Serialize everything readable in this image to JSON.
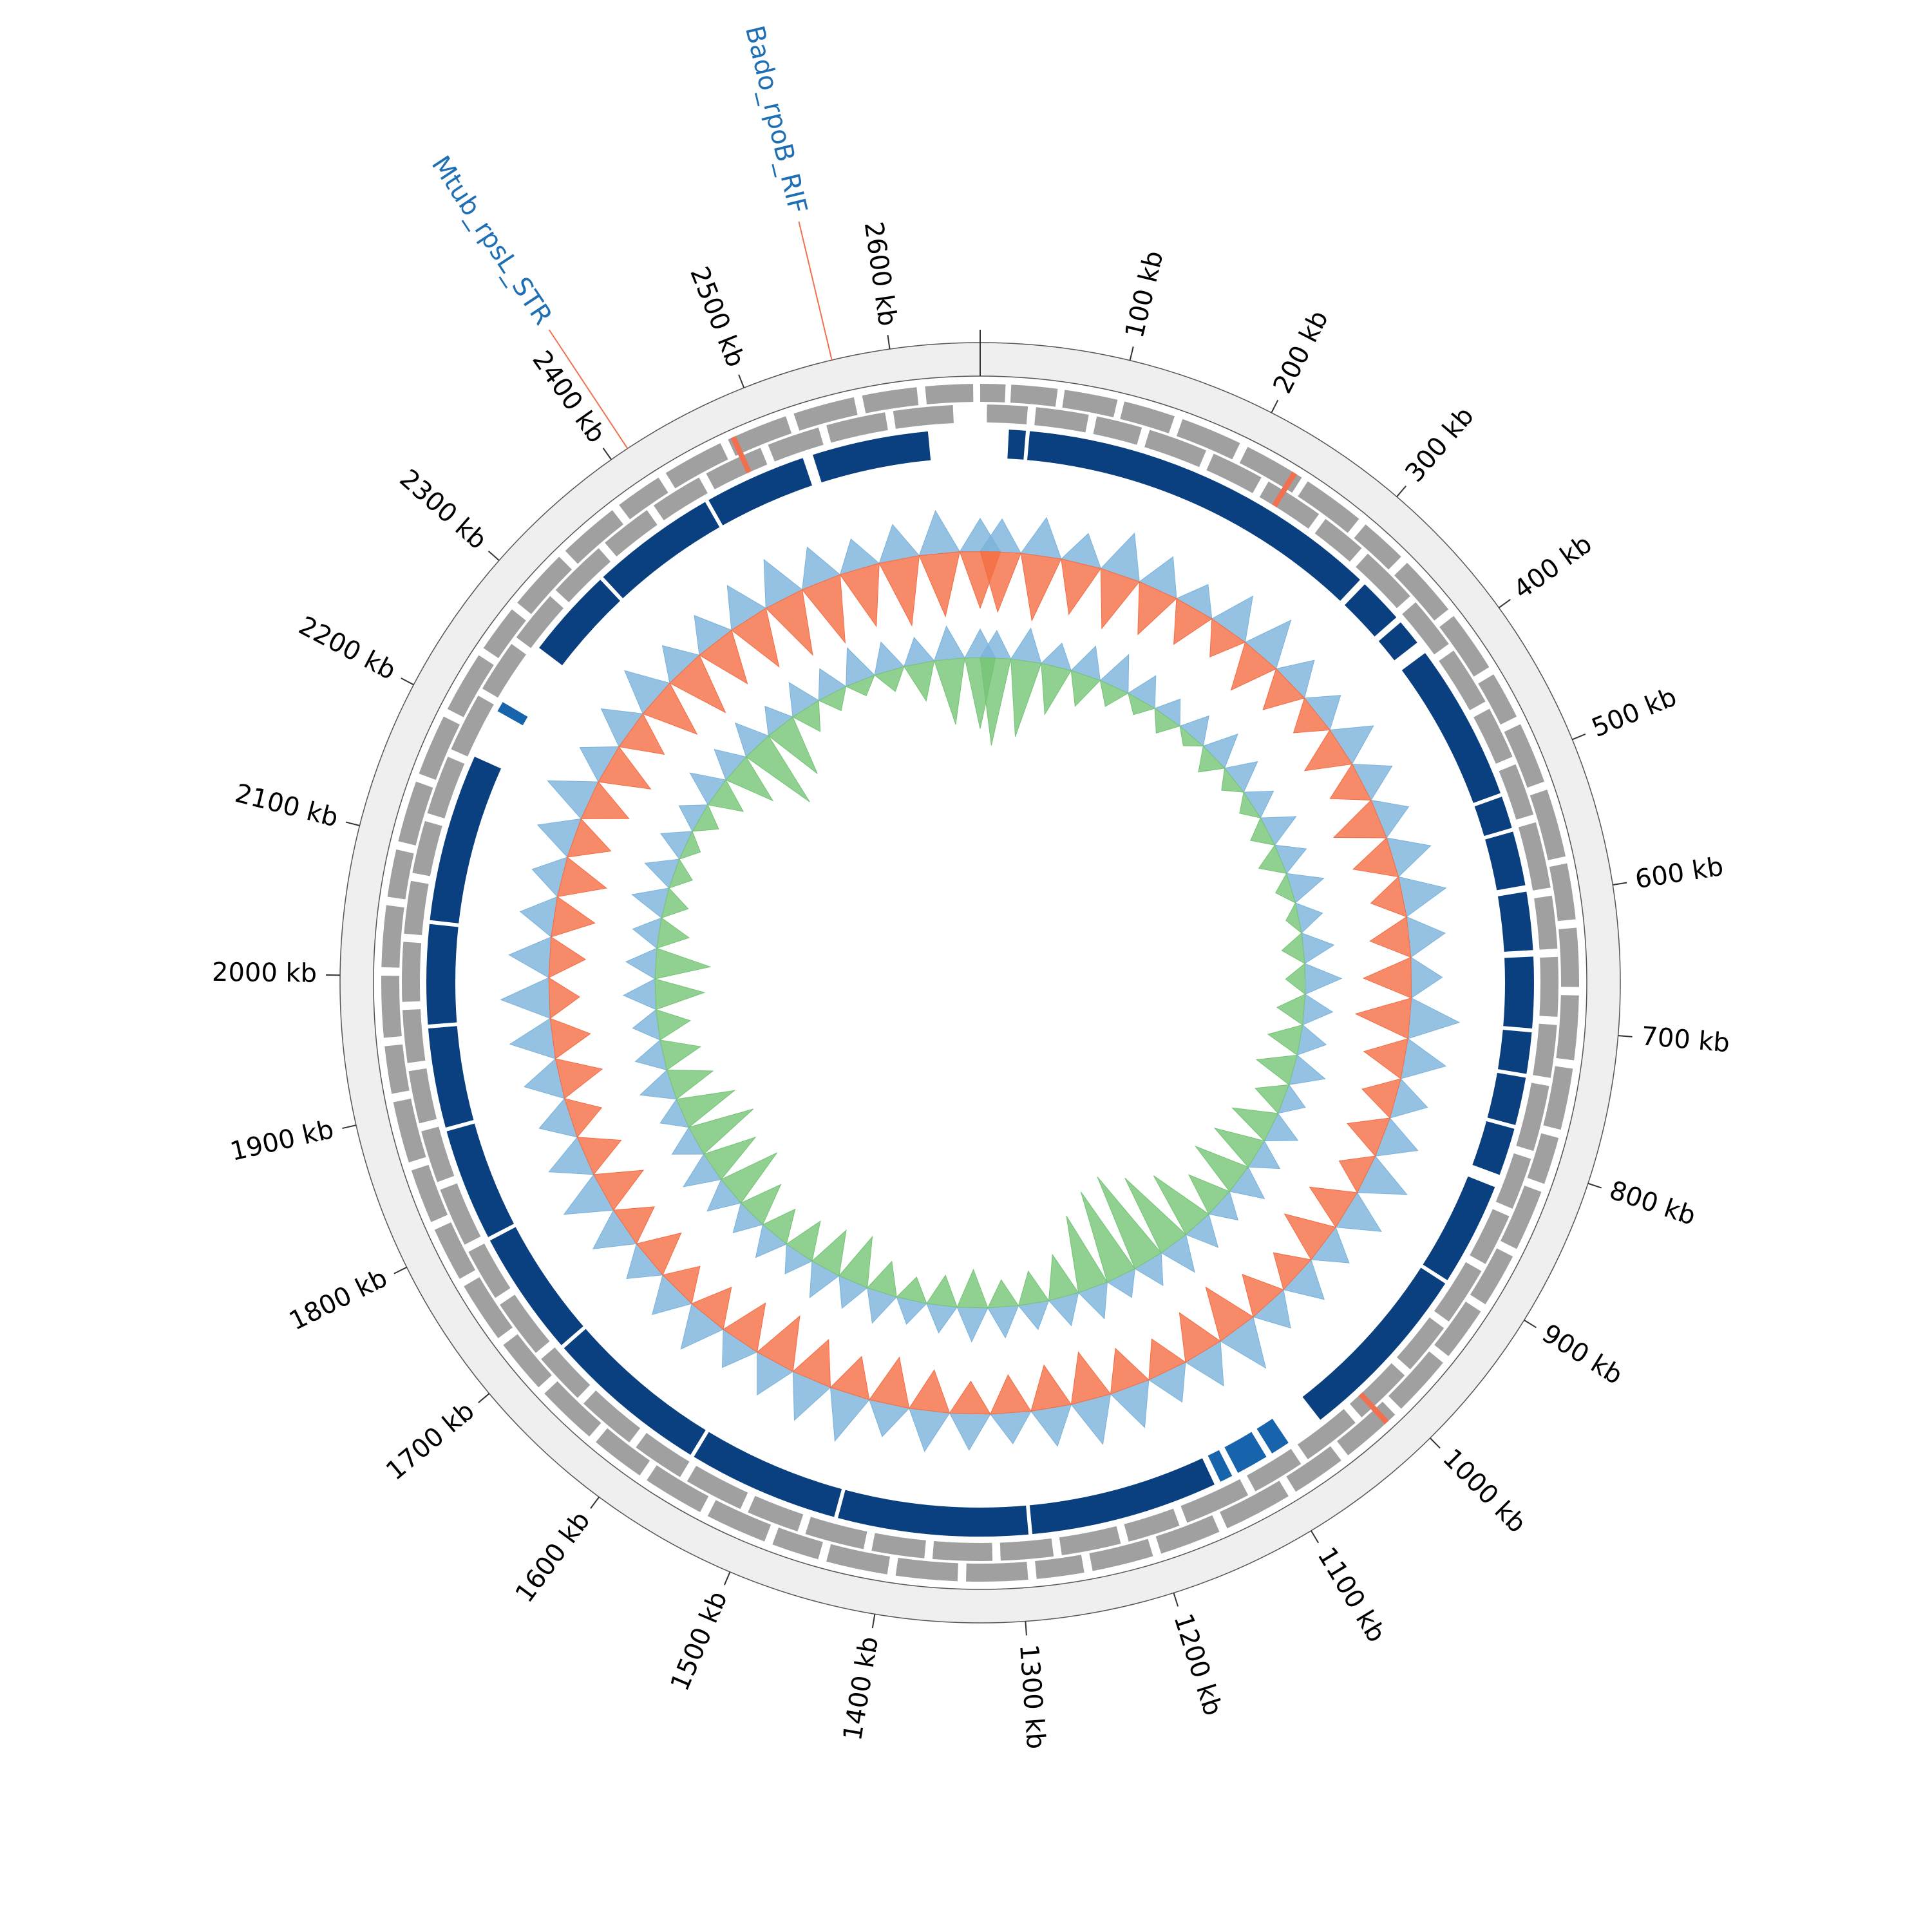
{
  "chart_data": {
    "type": "circular-genome",
    "xlim": [
      0,
      2660
    ],
    "xticks": [
      {
        "value": 100,
        "label": "100 kb"
      },
      {
        "value": 200,
        "label": "200 kb"
      },
      {
        "value": 300,
        "label": "300 kb"
      },
      {
        "value": 400,
        "label": "400 kb"
      },
      {
        "value": 500,
        "label": "500 kb"
      },
      {
        "value": 600,
        "label": "600 kb"
      },
      {
        "value": 700,
        "label": "700 kb"
      },
      {
        "value": 800,
        "label": "800 kb"
      },
      {
        "value": 900,
        "label": "900 kb"
      },
      {
        "value": 1000,
        "label": "1000 kb"
      },
      {
        "value": 1100,
        "label": "1100 kb"
      },
      {
        "value": 1200,
        "label": "1200 kb"
      },
      {
        "value": 1300,
        "label": "1300 kb"
      },
      {
        "value": 1400,
        "label": "1400 kb"
      },
      {
        "value": 1500,
        "label": "1500 kb"
      },
      {
        "value": 1600,
        "label": "1600 kb"
      },
      {
        "value": 1700,
        "label": "1700 kb"
      },
      {
        "value": 1800,
        "label": "1800 kb"
      },
      {
        "value": 1900,
        "label": "1900 kb"
      },
      {
        "value": 2000,
        "label": "2000 kb"
      },
      {
        "value": 2100,
        "label": "2100 kb"
      },
      {
        "value": 2200,
        "label": "2200 kb"
      },
      {
        "value": 2300,
        "label": "2300 kb"
      },
      {
        "value": 2400,
        "label": "2400 kb"
      },
      {
        "value": 2500,
        "label": "2500 kb"
      },
      {
        "value": 2600,
        "label": "2600 kb"
      }
    ],
    "annotations": [
      {
        "text": "Bado_rpoB_RIF",
        "position": 2561,
        "color": "#1f6fb4",
        "line_color": "#f07050"
      },
      {
        "text": "Mtub_rpsL_STR",
        "position": 2413,
        "color": "#1f6fb4",
        "line_color": "#f07050"
      }
    ],
    "genes_outer": {
      "color": "#a0a0a0",
      "segments": [
        [
          0,
          18
        ],
        [
          22,
          55
        ],
        [
          60,
          98
        ],
        [
          103,
          140
        ],
        [
          146,
          190
        ],
        [
          196,
          240
        ],
        [
          245,
          290
        ],
        [
          296,
          330
        ],
        [
          336,
          380
        ],
        [
          386,
          430
        ],
        [
          436,
          470
        ],
        [
          476,
          520
        ],
        [
          526,
          575
        ],
        [
          580,
          620
        ],
        [
          626,
          668
        ],
        [
          674,
          720
        ],
        [
          726,
          770
        ],
        [
          776,
          810
        ],
        [
          816,
          860
        ],
        [
          866,
          905
        ],
        [
          911,
          950
        ],
        [
          956,
          1000
        ],
        [
          1006,
          1050
        ],
        [
          1056,
          1095
        ],
        [
          1101,
          1150
        ],
        [
          1156,
          1200
        ],
        [
          1206,
          1250
        ],
        [
          1256,
          1290
        ],
        [
          1296,
          1340
        ],
        [
          1346,
          1390
        ],
        [
          1396,
          1440
        ],
        [
          1446,
          1480
        ],
        [
          1486,
          1530
        ],
        [
          1536,
          1580
        ],
        [
          1586,
          1625
        ],
        [
          1631,
          1675
        ],
        [
          1681,
          1720
        ],
        [
          1726,
          1770
        ],
        [
          1776,
          1815
        ],
        [
          1821,
          1860
        ],
        [
          1866,
          1910
        ],
        [
          1916,
          1950
        ],
        [
          1956,
          2000
        ],
        [
          2006,
          2050
        ],
        [
          2056,
          2090
        ],
        [
          2096,
          2140
        ],
        [
          2146,
          2190
        ],
        [
          2196,
          2240
        ],
        [
          2246,
          2280
        ],
        [
          2286,
          2330
        ],
        [
          2336,
          2380
        ],
        [
          2386,
          2420
        ],
        [
          2426,
          2470
        ],
        [
          2476,
          2520
        ],
        [
          2526,
          2570
        ],
        [
          2576,
          2615
        ],
        [
          2621,
          2655
        ]
      ]
    },
    "genes_inner": {
      "color": "#a0a0a0",
      "segments": [
        [
          5,
          35
        ],
        [
          41,
          80
        ],
        [
          86,
          120
        ],
        [
          126,
          170
        ],
        [
          176,
          215
        ],
        [
          221,
          265
        ],
        [
          271,
          305
        ],
        [
          311,
          355
        ],
        [
          361,
          400
        ],
        [
          406,
          450
        ],
        [
          456,
          495
        ],
        [
          501,
          540
        ],
        [
          546,
          595
        ],
        [
          601,
          640
        ],
        [
          646,
          690
        ],
        [
          696,
          735
        ],
        [
          741,
          790
        ],
        [
          796,
          835
        ],
        [
          841,
          880
        ],
        [
          886,
          930
        ],
        [
          936,
          975
        ],
        [
          981,
          1025
        ],
        [
          1031,
          1075
        ],
        [
          1081,
          1120
        ],
        [
          1126,
          1175
        ],
        [
          1181,
          1220
        ],
        [
          1226,
          1270
        ],
        [
          1276,
          1315
        ],
        [
          1321,
          1365
        ],
        [
          1371,
          1410
        ],
        [
          1416,
          1460
        ],
        [
          1466,
          1505
        ],
        [
          1511,
          1555
        ],
        [
          1561,
          1600
        ],
        [
          1606,
          1650
        ],
        [
          1656,
          1695
        ],
        [
          1701,
          1745
        ],
        [
          1751,
          1790
        ],
        [
          1796,
          1840
        ],
        [
          1846,
          1885
        ],
        [
          1891,
          1930
        ],
        [
          1936,
          1975
        ],
        [
          1981,
          2025
        ],
        [
          2031,
          2070
        ],
        [
          2076,
          2115
        ],
        [
          2121,
          2165
        ],
        [
          2171,
          2215
        ],
        [
          2221,
          2260
        ],
        [
          2266,
          2305
        ],
        [
          2311,
          2355
        ],
        [
          2361,
          2400
        ],
        [
          2406,
          2445
        ],
        [
          2451,
          2495
        ],
        [
          2501,
          2540
        ],
        [
          2546,
          2590
        ],
        [
          2596,
          2640
        ]
      ]
    },
    "rna": {
      "color": "#f07050",
      "segments": [
        [
          232,
          236
        ],
        [
          1012,
          1016
        ],
        [
          2478,
          2482
        ]
      ]
    },
    "blocks": {
      "color": "#0a3f80",
      "segments": [
        [
          22,
          35
        ],
        [
          38,
          320
        ],
        [
          325,
          360
        ],
        [
          365,
          385
        ],
        [
          395,
          517
        ],
        [
          520,
          545
        ],
        [
          548,
          590
        ],
        [
          595,
          640
        ],
        [
          645,
          700
        ],
        [
          703,
          735
        ],
        [
          738,
          775
        ],
        [
          778,
          815
        ],
        [
          825,
          905
        ],
        [
          908,
          1050
        ],
        [
          1145,
          1290
        ],
        [
          1293,
          1440
        ],
        [
          1443,
          1560
        ],
        [
          1563,
          1690
        ],
        [
          1693,
          1790
        ],
        [
          1793,
          1880
        ],
        [
          1883,
          1960
        ],
        [
          1963,
          2040
        ],
        [
          2043,
          2173
        ],
        [
          2270,
          2340
        ],
        [
          2343,
          2440
        ],
        [
          2443,
          2522
        ],
        [
          2530,
          2620
        ]
      ]
    },
    "blocks_light": {
      "color": "#1764ad",
      "segments": [
        [
          1080,
          1095
        ],
        [
          1100,
          1125
        ],
        [
          1130,
          1140
        ],
        [
          2212,
          2220
        ]
      ]
    },
    "x": [
      0,
      40,
      80,
      120,
      160,
      200,
      240,
      280,
      320,
      360,
      400,
      440,
      480,
      520,
      560,
      600,
      640,
      680,
      720,
      760,
      800,
      840,
      880,
      920,
      960,
      1000,
      1040,
      1080,
      1120,
      1160,
      1200,
      1240,
      1280,
      1320,
      1360,
      1400,
      1440,
      1480,
      1520,
      1560,
      1600,
      1640,
      1680,
      1720,
      1760,
      1800,
      1840,
      1880,
      1920,
      1960,
      2000,
      2040,
      2080,
      2120,
      2160,
      2200,
      2240,
      2280,
      2320,
      2360,
      2400,
      2440,
      2480,
      2520,
      2560,
      2600,
      2640
    ],
    "ylim": [
      -100,
      100
    ],
    "gc_outer": {
      "series": [
        {
          "color": "#7ab3db",
          "values": [
            30,
            35,
            28,
            40,
            33,
            25,
            38,
            42,
            30,
            27,
            35,
            31,
            29,
            36,
            40,
            33,
            28,
            45,
            38,
            30,
            34,
            41,
            37,
            29,
            33,
            30,
            44,
            36,
            31,
            39,
            42,
            35,
            28,
            33,
            37,
            30,
            45,
            40,
            34,
            29,
            38,
            32,
            27,
            35,
            41,
            36,
            30,
            33,
            39,
            44,
            37,
            31,
            28,
            35,
            42,
            30,
            33,
            38,
            29,
            31,
            36,
            40,
            34,
            28,
            32,
            39,
            30
          ]
        },
        {
          "color": "#f46d43",
          "values": [
            -55,
            -60,
            -48,
            -52,
            -45,
            -38,
            -30,
            -42,
            -35,
            -28,
            -40,
            -33,
            -45,
            -38,
            -30,
            -36,
            -44,
            -50,
            -38,
            -32,
            -35,
            -28,
            -40,
            -45,
            -30,
            -36,
            -48,
            -42,
            -33,
            -38,
            -45,
            -40,
            -35,
            -30,
            -38,
            -44,
            -36,
            -40,
            -48,
            -42,
            -35,
            -30,
            -38,
            -33,
            -42,
            -36,
            -30,
            -40,
            -35,
            -28,
            -33,
            -38,
            -42,
            -36,
            -40,
            -45,
            -38,
            -50,
            -55,
            -48,
            -52,
            -58,
            -60,
            -55,
            -62,
            -58,
            -52
          ]
        }
      ]
    },
    "gc_inner": {
      "series": [
        {
          "color": "#7ab3db",
          "values": [
            25,
            30,
            22,
            28,
            32,
            26,
            20,
            24,
            30,
            27,
            23,
            29,
            25,
            31,
            22,
            28,
            33,
            26,
            24,
            30,
            21,
            27,
            25,
            29,
            23,
            28,
            32,
            26,
            22,
            30,
            27,
            24,
            28,
            31,
            25,
            22,
            29,
            26,
            30,
            23,
            27,
            24,
            28,
            32,
            25,
            22,
            30,
            26,
            23,
            29,
            27,
            24,
            31,
            28,
            25,
            22,
            30,
            26,
            29,
            23,
            28,
            25,
            32,
            27,
            24,
            30,
            26
          ]
        },
        {
          "color": "#74c476",
          "values": [
            -80,
            -70,
            -45,
            -30,
            -20,
            -15,
            -18,
            -12,
            -20,
            -15,
            -14,
            -18,
            -22,
            -15,
            -12,
            -20,
            -18,
            -25,
            -30,
            -35,
            -28,
            -40,
            -45,
            -50,
            -38,
            -60,
            -75,
            -90,
            -85,
            -70,
            -40,
            -30,
            -25,
            -35,
            -28,
            -22,
            -30,
            -45,
            -40,
            -35,
            -30,
            -38,
            -55,
            -48,
            -60,
            -52,
            -40,
            -35,
            -30,
            -45,
            -50,
            -28,
            -22,
            -18,
            -15,
            -20,
            -30,
            -45,
            -70,
            -55,
            -25,
            -18,
            -15,
            -20,
            -35,
            -60,
            -65
          ]
        }
      ]
    }
  }
}
